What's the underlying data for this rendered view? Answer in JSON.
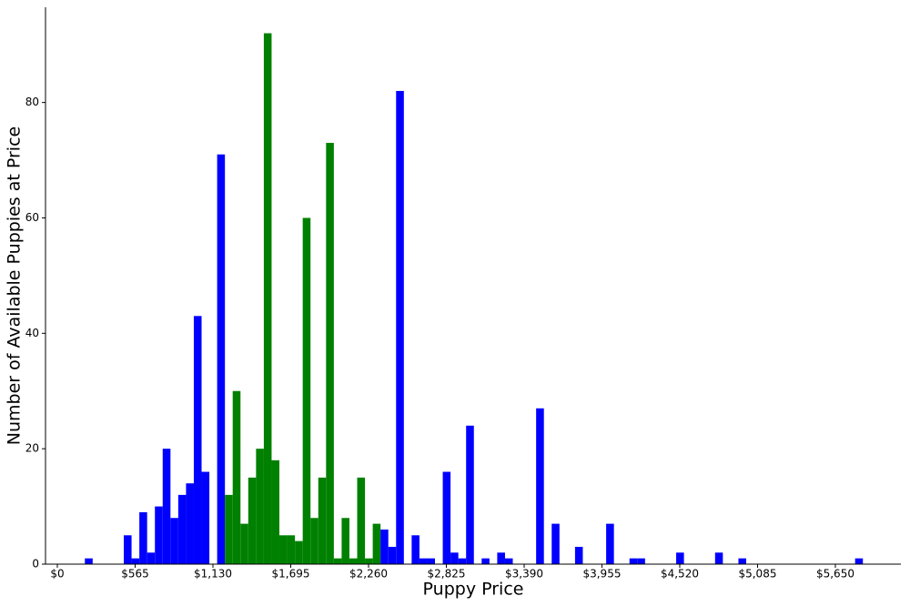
{
  "chart_data": {
    "type": "histogram",
    "xlabel": "Puppy Price",
    "ylabel": "Number of Available Puppies at Price",
    "bins": [
      200,
      256.5,
      313,
      369.5,
      426,
      482.5,
      539,
      595.5,
      652,
      708.5,
      765,
      821.5,
      878,
      934.5,
      991,
      1047.5,
      1104,
      1160.5,
      1217,
      1273.5,
      1330,
      1386.5,
      1443,
      1499.5,
      1556,
      1612.5,
      1669,
      1725.5,
      1782,
      1838.5,
      1895,
      1951.5,
      2008,
      2064.5,
      2121,
      2177.5,
      2234,
      2290.5,
      2347,
      2403.5,
      2460,
      2516.5,
      2573,
      2629.5,
      2686,
      2742.5,
      2799,
      2855.5,
      2912,
      2968.5,
      3025,
      3081.5,
      3138,
      3194.5,
      3251,
      3307.5,
      3364,
      3420.5,
      3477,
      3533.5,
      3590,
      3646.5,
      3703,
      3759.5,
      3816,
      3872.5,
      3929,
      3985.5,
      4042,
      4098.5,
      4155,
      4211.5,
      4268,
      4324.5,
      4381,
      4437.5,
      4494,
      4550.5,
      4607,
      4663.5,
      4720,
      4776.5,
      4833,
      4889.5,
      4946,
      5002.5,
      5059,
      5115.5,
      5172,
      5228.5,
      5285,
      5341.5,
      5398,
      5454.5,
      5511,
      5567.5,
      5624,
      5680.5,
      5737,
      5793.5,
      5850
    ],
    "values": [
      1,
      0,
      0,
      0,
      0,
      5,
      1,
      9,
      2,
      10,
      20,
      8,
      12,
      14,
      43,
      16,
      0,
      71,
      12,
      30,
      7,
      15,
      20,
      92,
      18,
      5,
      5,
      4,
      60,
      8,
      15,
      73,
      1,
      8,
      1,
      15,
      1,
      7,
      6,
      3,
      82,
      0,
      5,
      1,
      1,
      0,
      16,
      2,
      1,
      24,
      0,
      1,
      0,
      2,
      1,
      0,
      0,
      0,
      27,
      0,
      7,
      0,
      0,
      3,
      0,
      0,
      0,
      7,
      0,
      0,
      1,
      1,
      0,
      0,
      0,
      0,
      2,
      0,
      0,
      0,
      0,
      2,
      0,
      0,
      1,
      0,
      0,
      0,
      0,
      0,
      0,
      0,
      0,
      0,
      0,
      0,
      0,
      0,
      0,
      1
    ],
    "colors": [
      "#0000ff",
      "#0000ff",
      "#0000ff",
      "#0000ff",
      "#0000ff",
      "#0000ff",
      "#0000ff",
      "#0000ff",
      "#0000ff",
      "#0000ff",
      "#0000ff",
      "#0000ff",
      "#0000ff",
      "#0000ff",
      "#0000ff",
      "#0000ff",
      "#0000ff",
      "#0000ff",
      "#008000",
      "#008000",
      "#008000",
      "#008000",
      "#008000",
      "#008000",
      "#008000",
      "#008000",
      "#008000",
      "#008000",
      "#008000",
      "#008000",
      "#008000",
      "#008000",
      "#008000",
      "#008000",
      "#008000",
      "#008000",
      "#008000",
      "#008000",
      "#0000ff",
      "#0000ff",
      "#0000ff",
      "#0000ff",
      "#0000ff",
      "#0000ff",
      "#0000ff",
      "#0000ff",
      "#0000ff",
      "#0000ff",
      "#0000ff",
      "#0000ff",
      "#0000ff",
      "#0000ff",
      "#0000ff",
      "#0000ff",
      "#0000ff",
      "#0000ff",
      "#0000ff",
      "#0000ff",
      "#0000ff",
      "#0000ff",
      "#0000ff",
      "#0000ff",
      "#0000ff",
      "#0000ff",
      "#0000ff",
      "#0000ff",
      "#0000ff",
      "#0000ff",
      "#0000ff",
      "#0000ff",
      "#0000ff",
      "#0000ff",
      "#0000ff",
      "#0000ff",
      "#0000ff",
      "#0000ff",
      "#0000ff",
      "#0000ff",
      "#0000ff",
      "#0000ff",
      "#0000ff",
      "#0000ff",
      "#0000ff",
      "#0000ff",
      "#0000ff",
      "#0000ff",
      "#0000ff",
      "#0000ff",
      "#0000ff",
      "#0000ff",
      "#0000ff",
      "#0000ff",
      "#0000ff",
      "#0000ff",
      "#0000ff",
      "#0000ff",
      "#0000ff",
      "#0000ff",
      "#0000ff",
      "#0000ff"
    ],
    "xlim": [
      -86,
      6126
    ],
    "xticks": [
      {
        "value": 0,
        "label": "$0"
      },
      {
        "value": 565,
        "label": "$565"
      },
      {
        "value": 1130,
        "label": "$1,130"
      },
      {
        "value": 1695,
        "label": "$1,695"
      },
      {
        "value": 2260,
        "label": "$2,260"
      },
      {
        "value": 2825,
        "label": "$2,825"
      },
      {
        "value": 3390,
        "label": "$3,390"
      },
      {
        "value": 3955,
        "label": "$3,955"
      },
      {
        "value": 4520,
        "label": "$4,520"
      },
      {
        "value": 5085,
        "label": "$5,085"
      },
      {
        "value": 5650,
        "label": "$5,650"
      }
    ],
    "ylim": [
      0,
      96.5
    ],
    "yticks": [
      0,
      20,
      40,
      60,
      80
    ]
  }
}
